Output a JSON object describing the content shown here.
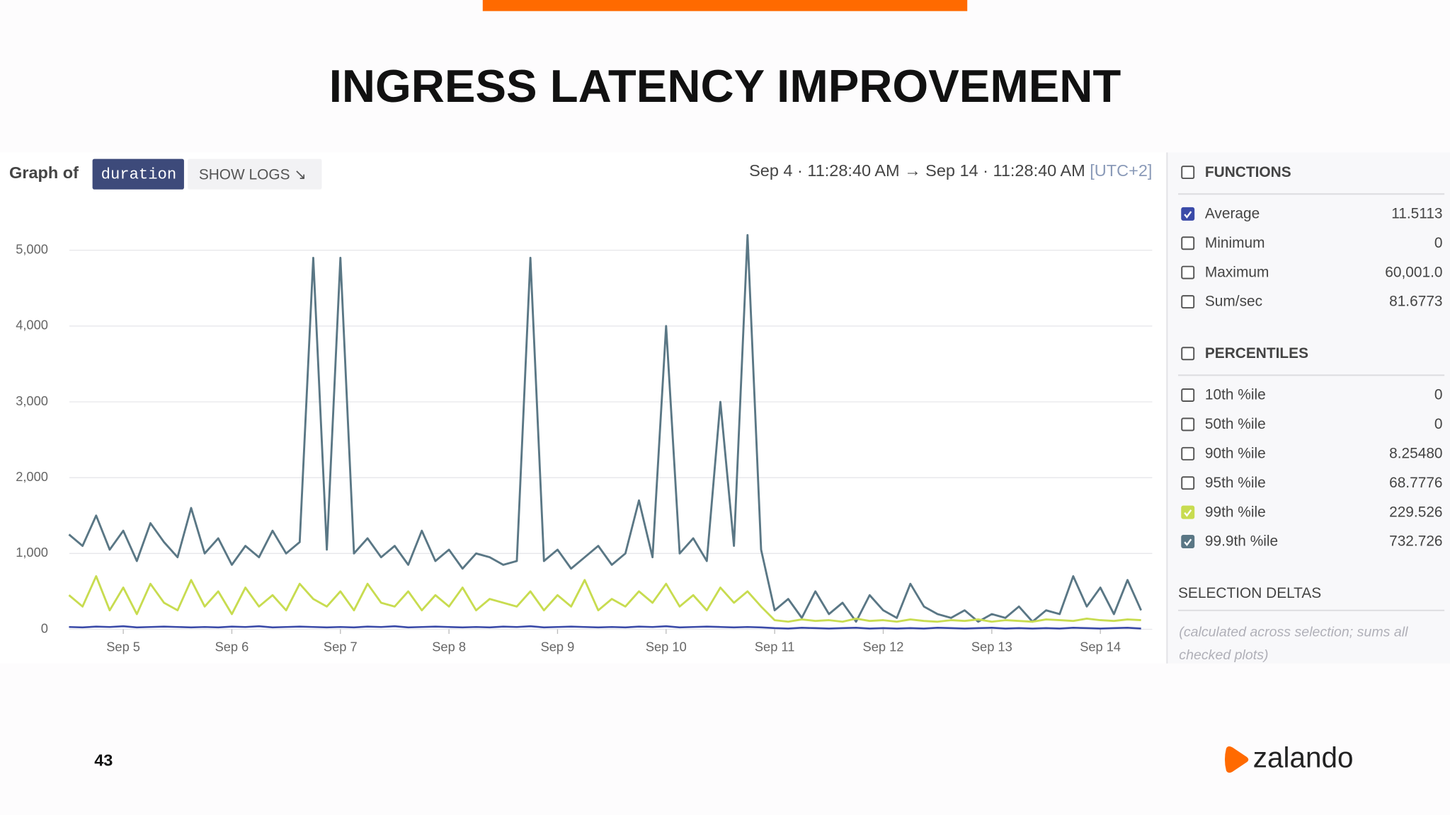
{
  "slide": {
    "title": "INGRESS LATENCY IMPROVEMENT",
    "page_number": "43",
    "logo": "zalando"
  },
  "header": {
    "graph_of": "Graph of",
    "metric": "duration",
    "show_logs": "SHOW LOGS ↘",
    "time_range": "Sep 4 · 11:28:40 AM → Sep 14 · 11:28:40 AM",
    "timezone": "[UTC+2]"
  },
  "panel": {
    "sections": [
      {
        "title": "FUNCTIONS",
        "items": [
          {
            "label": "Average",
            "value": "11.5113",
            "checked": true,
            "color": "#3a4aa8"
          },
          {
            "label": "Minimum",
            "value": "0",
            "checked": false
          },
          {
            "label": "Maximum",
            "value": "60,001.0",
            "checked": false
          },
          {
            "label": "Sum/sec",
            "value": "81.6773",
            "checked": false
          }
        ]
      },
      {
        "title": "PERCENTILES",
        "items": [
          {
            "label": "10th %ile",
            "value": "0",
            "checked": false
          },
          {
            "label": "50th %ile",
            "value": "0",
            "checked": false
          },
          {
            "label": "90th %ile",
            "value": "8.25480",
            "checked": false
          },
          {
            "label": "95th %ile",
            "value": "68.7776",
            "checked": false
          },
          {
            "label": "99th %ile",
            "value": "229.526",
            "checked": true,
            "color": "#c8dc50"
          },
          {
            "label": "99.9th %ile",
            "value": "732.726",
            "checked": true,
            "color": "#5a7785"
          }
        ]
      }
    ],
    "deltas": {
      "title": "SELECTION DELTAS",
      "note": [
        "(calculated across selection; sums all",
        "checked plots)"
      ]
    }
  },
  "chart_data": {
    "type": "line",
    "x": [
      4.5,
      4.625,
      4.75,
      4.875,
      5,
      5.125,
      5.25,
      5.375,
      5.5,
      5.625,
      5.75,
      5.875,
      6,
      6.125,
      6.25,
      6.375,
      6.5,
      6.625,
      6.75,
      6.875,
      7,
      7.125,
      7.25,
      7.375,
      7.5,
      7.625,
      7.75,
      7.875,
      8,
      8.125,
      8.25,
      8.375,
      8.5,
      8.625,
      8.75,
      8.875,
      9,
      9.125,
      9.25,
      9.375,
      9.5,
      9.625,
      9.75,
      9.875,
      10,
      10.125,
      10.25,
      10.375,
      10.5,
      10.625,
      10.75,
      10.875,
      11,
      11.125,
      11.25,
      11.375,
      11.5,
      11.625,
      11.75,
      11.875,
      12,
      12.125,
      12.25,
      12.375,
      12.5,
      12.625,
      12.75,
      12.875,
      13,
      13.125,
      13.25,
      13.375,
      13.5,
      13.625,
      13.75,
      13.875,
      14,
      14.125,
      14.25,
      14.375
    ],
    "series": [
      {
        "color": "#5a7785",
        "values": [
          1250,
          1100,
          1500,
          1050,
          1300,
          900,
          1400,
          1150,
          950,
          1600,
          1000,
          1200,
          850,
          1100,
          950,
          1300,
          1000,
          1150,
          4900,
          1050,
          4900,
          1000,
          1200,
          950,
          1100,
          850,
          1300,
          900,
          1050,
          800,
          1000,
          950,
          850,
          900,
          4900,
          900,
          1050,
          800,
          950,
          1100,
          850,
          1000,
          1700,
          950,
          4000,
          1000,
          1200,
          900,
          3000,
          1100,
          5200,
          1050,
          250,
          400,
          150,
          500,
          200,
          350,
          100,
          450,
          250,
          150,
          600,
          300,
          200,
          150,
          250,
          100,
          200,
          150,
          300,
          100,
          250,
          200,
          700,
          300,
          550,
          200,
          650,
          250
        ]
      },
      {
        "color": "#c8dc50",
        "values": [
          450,
          300,
          700,
          250,
          550,
          200,
          600,
          350,
          250,
          650,
          300,
          500,
          200,
          550,
          300,
          450,
          250,
          600,
          400,
          300,
          500,
          250,
          600,
          350,
          300,
          500,
          250,
          450,
          300,
          550,
          250,
          400,
          350,
          300,
          500,
          250,
          450,
          300,
          650,
          250,
          400,
          300,
          500,
          350,
          600,
          300,
          450,
          250,
          550,
          350,
          500,
          300,
          120,
          100,
          130,
          110,
          120,
          100,
          140,
          110,
          120,
          100,
          130,
          110,
          100,
          120,
          110,
          130,
          100,
          120,
          110,
          100,
          130,
          120,
          110,
          140,
          120,
          110,
          130,
          120
        ]
      },
      {
        "color": "#3a4aa8",
        "values": [
          30,
          25,
          35,
          30,
          40,
          25,
          30,
          35,
          30,
          25,
          30,
          25,
          35,
          30,
          40,
          25,
          30,
          35,
          30,
          25,
          30,
          25,
          35,
          30,
          40,
          25,
          30,
          35,
          30,
          25,
          30,
          25,
          35,
          30,
          40,
          25,
          30,
          35,
          30,
          25,
          30,
          25,
          35,
          30,
          40,
          25,
          30,
          35,
          30,
          25,
          30,
          25,
          15,
          10,
          20,
          15,
          10,
          15,
          20,
          10,
          15,
          10,
          15,
          10,
          20,
          15,
          10,
          15,
          20,
          10,
          15,
          10,
          15,
          10,
          20,
          15,
          10,
          15,
          20,
          10
        ]
      }
    ],
    "xlim": [
      4.4778,
      14.4778
    ],
    "xticks": [
      {
        "value": 5,
        "label": "Sep 5"
      },
      {
        "value": 6,
        "label": "Sep 6"
      },
      {
        "value": 7,
        "label": "Sep 7"
      },
      {
        "value": 8,
        "label": "Sep 8"
      },
      {
        "value": 9,
        "label": "Sep 9"
      },
      {
        "value": 10,
        "label": "Sep 10"
      },
      {
        "value": 11,
        "label": "Sep 11"
      },
      {
        "value": 12,
        "label": "Sep 12"
      },
      {
        "value": 13,
        "label": "Sep 13"
      },
      {
        "value": 14,
        "label": "Sep 14"
      }
    ],
    "ylim": [
      0,
      5400
    ],
    "yticks": [
      0,
      {
        "value": 1000,
        "label": "1,000"
      },
      {
        "value": 2000,
        "label": "2,000"
      },
      {
        "value": 3000,
        "label": "3,000"
      },
      {
        "value": 4000,
        "label": "4,000"
      },
      {
        "value": 5000,
        "label": "5,000"
      }
    ],
    "grid": true
  }
}
